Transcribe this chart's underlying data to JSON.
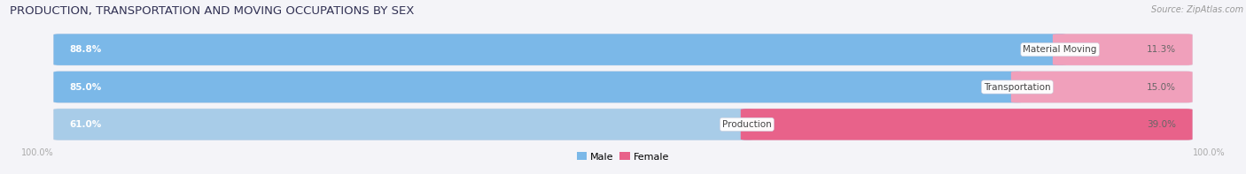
{
  "title": "PRODUCTION, TRANSPORTATION AND MOVING OCCUPATIONS BY SEX",
  "source": "Source: ZipAtlas.com",
  "categories": [
    "Material Moving",
    "Transportation",
    "Production"
  ],
  "male_values": [
    88.8,
    85.0,
    61.0
  ],
  "female_values": [
    11.3,
    15.0,
    39.0
  ],
  "male_colors": [
    "#7BB8E8",
    "#7BB8E8",
    "#A8CCE8"
  ],
  "female_colors": [
    "#F0A0BB",
    "#F0A0BB",
    "#E8628A"
  ],
  "bg_color": "#F4F4F8",
  "bar_bg_color": "#FFFFFF",
  "bar_border_color": "#DDDDE8",
  "title_color": "#333355",
  "source_color": "#999999",
  "pct_left_color": "#FFFFFF",
  "pct_right_color": "#666666",
  "label_color": "#444444",
  "axis_label_color": "#AAAAAA",
  "legend_male_color": "#7BB8E8",
  "legend_female_color": "#E8628A",
  "title_fontsize": 9.5,
  "source_fontsize": 7,
  "bar_label_fontsize": 7.5,
  "pct_fontsize": 7.5,
  "legend_fontsize": 8,
  "axis_fontsize": 7,
  "axis_label": "100.0%"
}
